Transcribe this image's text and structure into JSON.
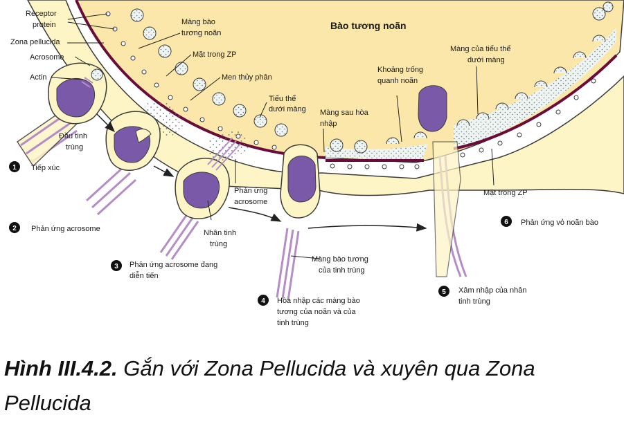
{
  "labels": {
    "receptor_protein": [
      "Receptor",
      "protein"
    ],
    "zona_pellucida": "Zona pellucida",
    "acrosome": "Acrosome",
    "actin": "Actin",
    "sperm_head": [
      "Đầu tinh",
      "trùng"
    ],
    "oocyte_cytoplasm": "Bào tương noãn",
    "oocyte_membrane": [
      "Màng bào",
      "tương noãn"
    ],
    "zp_inner_face_top": "Mặt trong ZP",
    "hydrolytic_enzyme": "Men thủy phân",
    "cortical_granules": [
      "Tiểu thể",
      "dưới màng"
    ],
    "post_fusion_membrane": [
      "Màng sau hòa",
      "nhập"
    ],
    "perivitelline_space": [
      "Khoảng trống",
      "quanh noãn"
    ],
    "cortical_granule_membrane": [
      "Màng của tiểu thể",
      "dưới màng"
    ],
    "acrosome_reaction_label": [
      "Phản ứng",
      "acrosome"
    ],
    "sperm_nucleus": [
      "Nhân tinh",
      "trùng"
    ],
    "sperm_membrane": [
      "Màng bào tương",
      "của tinh trùng"
    ],
    "zp_inner_face_right": "Mặt trong ZP"
  },
  "steps": [
    {
      "num": "1",
      "label": [
        "Tiếp xúc"
      ]
    },
    {
      "num": "2",
      "label": [
        "Phản ứng acrosome"
      ]
    },
    {
      "num": "3",
      "label": [
        "Phản ứng acrosome đang",
        "diễn tiến"
      ]
    },
    {
      "num": "4",
      "label": [
        "Hòa nhập các màng bào",
        "tương của noãn và của",
        "tinh trùng"
      ]
    },
    {
      "num": "5",
      "label": [
        "Xâm nhập của nhân",
        "tinh trùng"
      ]
    },
    {
      "num": "6",
      "label": [
        "Phản ứng vỏ noãn bào"
      ]
    }
  ],
  "caption": {
    "number": "Hình III.4.2.",
    "text": "Gắn với Zona Pellucida và xuyên qua Zona Pellucida"
  },
  "colors": {
    "cytoplasm": "#fbe7a9",
    "zona": "#fdf5c6",
    "outline": "#3b3b3b",
    "membrane": "#6a0b3a",
    "nucleus": "#7a5aa8",
    "tail": "#b58dc6",
    "granule_fill": "#e8f1ef"
  }
}
